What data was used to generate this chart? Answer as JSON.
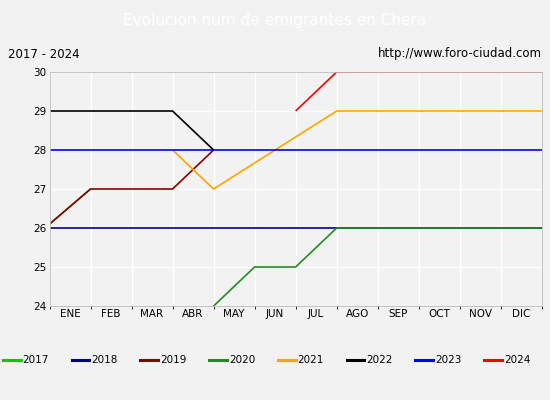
{
  "title": "Evolucion num de emigrantes en Chera",
  "subtitle_left": "2017 - 2024",
  "subtitle_right": "http://www.foro-ciudad.com",
  "x_labels": [
    "ENE",
    "FEB",
    "MAR",
    "ABR",
    "MAY",
    "JUN",
    "JUL",
    "AGO",
    "SEP",
    "OCT",
    "NOV",
    "DIC"
  ],
  "ylim": [
    24.0,
    30.0
  ],
  "yticks": [
    24.0,
    25.0,
    26.0,
    27.0,
    28.0,
    29.0,
    30.0
  ],
  "series": [
    {
      "label": "2017",
      "color": "#00cc00",
      "x": [
        0,
        1
      ],
      "y": [
        26.1,
        27.0
      ]
    },
    {
      "label": "2018",
      "color": "#00008b",
      "x": [
        0,
        12
      ],
      "y": [
        26.0,
        26.0
      ]
    },
    {
      "label": "2019",
      "color": "#8b0000",
      "x": [
        0,
        1,
        3,
        4
      ],
      "y": [
        26.1,
        27.0,
        27.0,
        28.0
      ]
    },
    {
      "label": "2020",
      "color": "#228b22",
      "x": [
        4,
        5,
        6,
        7,
        12
      ],
      "y": [
        24.0,
        25.0,
        25.0,
        26.0,
        26.0
      ]
    },
    {
      "label": "2021",
      "color": "#ffa500",
      "x": [
        3,
        4,
        7,
        12
      ],
      "y": [
        28.0,
        27.0,
        29.0,
        29.0
      ]
    },
    {
      "label": "2022",
      "color": "#000000",
      "x": [
        0,
        3,
        4
      ],
      "y": [
        29.0,
        29.0,
        28.0
      ]
    },
    {
      "label": "2023",
      "color": "#0000ff",
      "x": [
        0,
        12
      ],
      "y": [
        28.0,
        28.0
      ]
    },
    {
      "label": "2024",
      "color": "#ff0000",
      "x": [
        6,
        7,
        12
      ],
      "y": [
        29.0,
        30.0,
        30.0
      ]
    }
  ],
  "title_bg_color": "#4472c4",
  "title_font_color": "#ffffff",
  "subtitle_bg_color": "#f2f2f2",
  "plot_bg_color": "#f2f2f2",
  "grid_color": "#ffffff",
  "legend_bg_color": "#f2f2f2",
  "legend_border_color": "#4472c4",
  "fig_bg_color": "#f2f2f2"
}
